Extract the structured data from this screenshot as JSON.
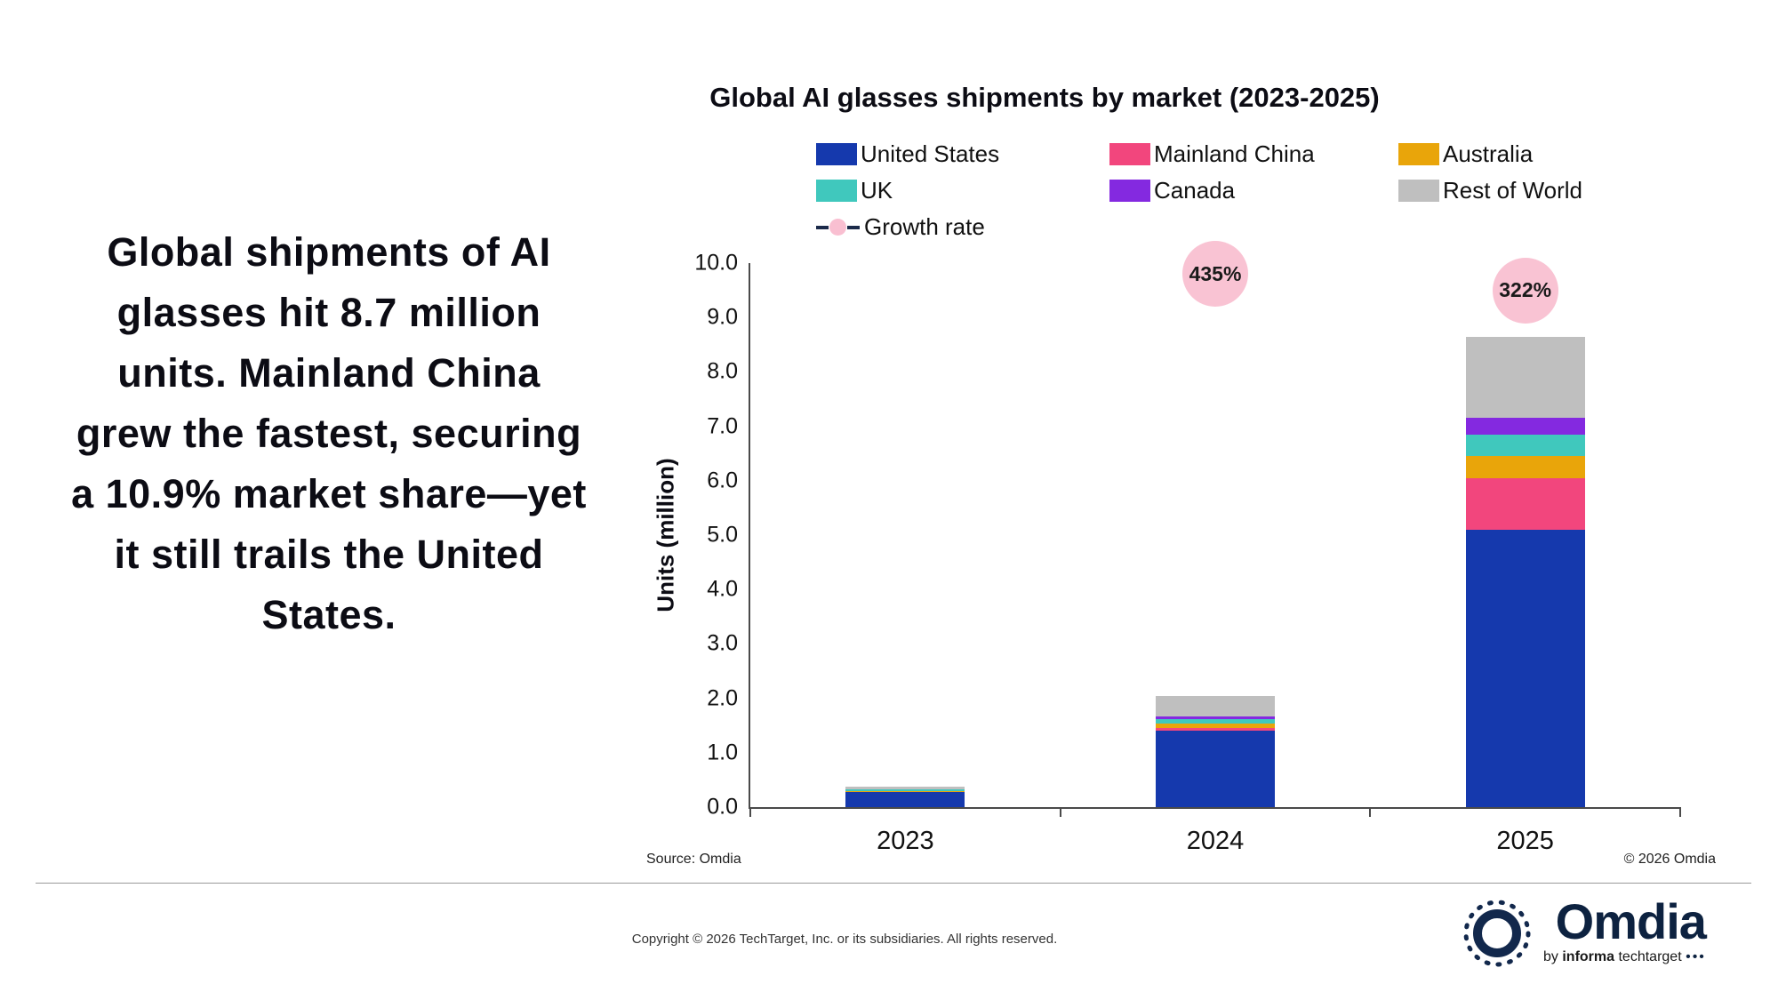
{
  "headline": "Global shipments of AI glasses hit 8.7 million units. Mainland China grew the fastest, securing a 10.9% market share—yet it still trails the United States.",
  "chart": {
    "title": "Global AI glasses shipments by market (2023-2025)",
    "ylabel": "Units (million)",
    "source": "Source: Omdia",
    "copyright_right": "© 2026 Omdia"
  },
  "chart_data": {
    "type": "bar",
    "stacked": true,
    "title": "Global AI glasses shipments by market (2023-2025)",
    "xlabel": "",
    "ylabel": "Units (million)",
    "ylim": [
      0,
      10
    ],
    "ytick_step": 1,
    "legend_position": "top",
    "grid": false,
    "categories": [
      "2023",
      "2024",
      "2025"
    ],
    "series": [
      {
        "name": "United States",
        "color": "#1539ad",
        "values": [
          0.27,
          1.4,
          5.1
        ]
      },
      {
        "name": "Mainland China",
        "color": "#f2467d",
        "values": [
          0.01,
          0.05,
          0.95
        ]
      },
      {
        "name": "Australia",
        "color": "#e9a50a",
        "values": [
          0.02,
          0.08,
          0.4
        ]
      },
      {
        "name": "UK",
        "color": "#40c8bd",
        "values": [
          0.02,
          0.08,
          0.4
        ]
      },
      {
        "name": "Canada",
        "color": "#8429e0",
        "values": [
          0.01,
          0.06,
          0.3
        ]
      },
      {
        "name": "Rest of World",
        "color": "#bfbfbf",
        "values": [
          0.05,
          0.38,
          1.5
        ]
      }
    ],
    "growth_rate": {
      "name": "Growth rate",
      "values": [
        null,
        435,
        322
      ],
      "labels": [
        "",
        "435%",
        "322%"
      ],
      "marker_y": [
        null,
        9.8,
        9.5
      ],
      "bubble_color": "#f9c3d3"
    },
    "totals": [
      0.38,
      2.05,
      8.65
    ]
  },
  "footer": {
    "copyright": "Copyright © 2026 TechTarget, Inc. or its subsidiaries. All rights reserved."
  },
  "logo": {
    "wordmark": "Omdia",
    "tagline_by": "by",
    "tagline_informa": "informa",
    "tagline_techtarget": "techtarget",
    "tagline_dots": "•••"
  }
}
